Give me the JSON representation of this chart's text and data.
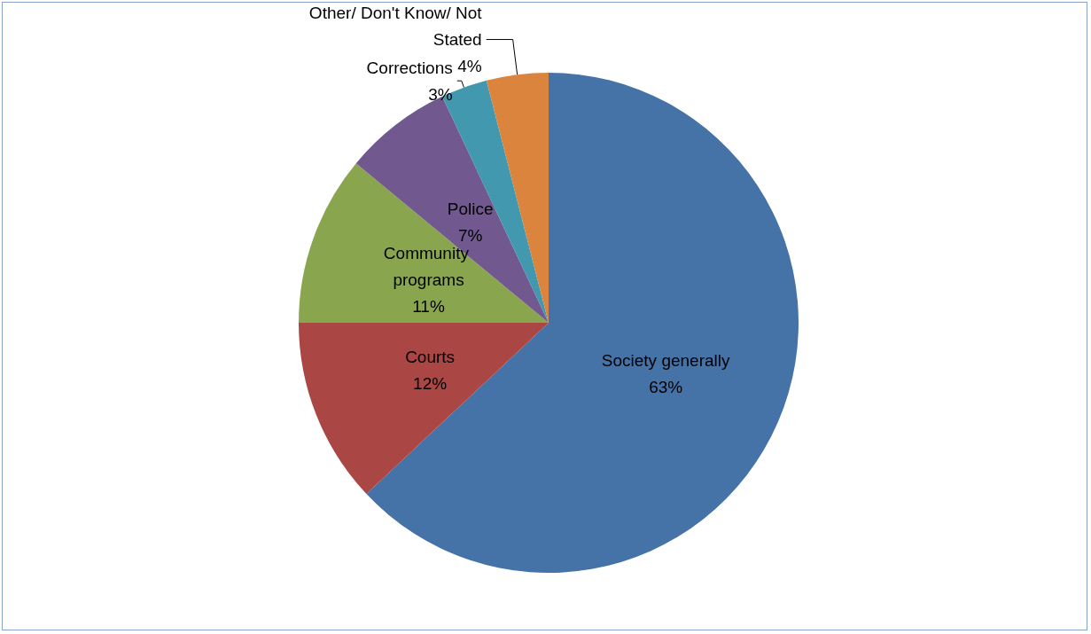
{
  "chart_data": {
    "type": "pie",
    "categories": [
      "Society generally",
      "Courts",
      "Community programs",
      "Police",
      "Corrections",
      "Other/ Don't Know/ Not Stated"
    ],
    "values": [
      63,
      12,
      11,
      7,
      3,
      4
    ],
    "colors": [
      "#4572a7",
      "#aa4643",
      "#89a54e",
      "#71588f",
      "#4198af",
      "#db843d"
    ],
    "value_labels": [
      "63%",
      "12%",
      "11%",
      "7%",
      "3%",
      "4%"
    ],
    "legend": false
  }
}
